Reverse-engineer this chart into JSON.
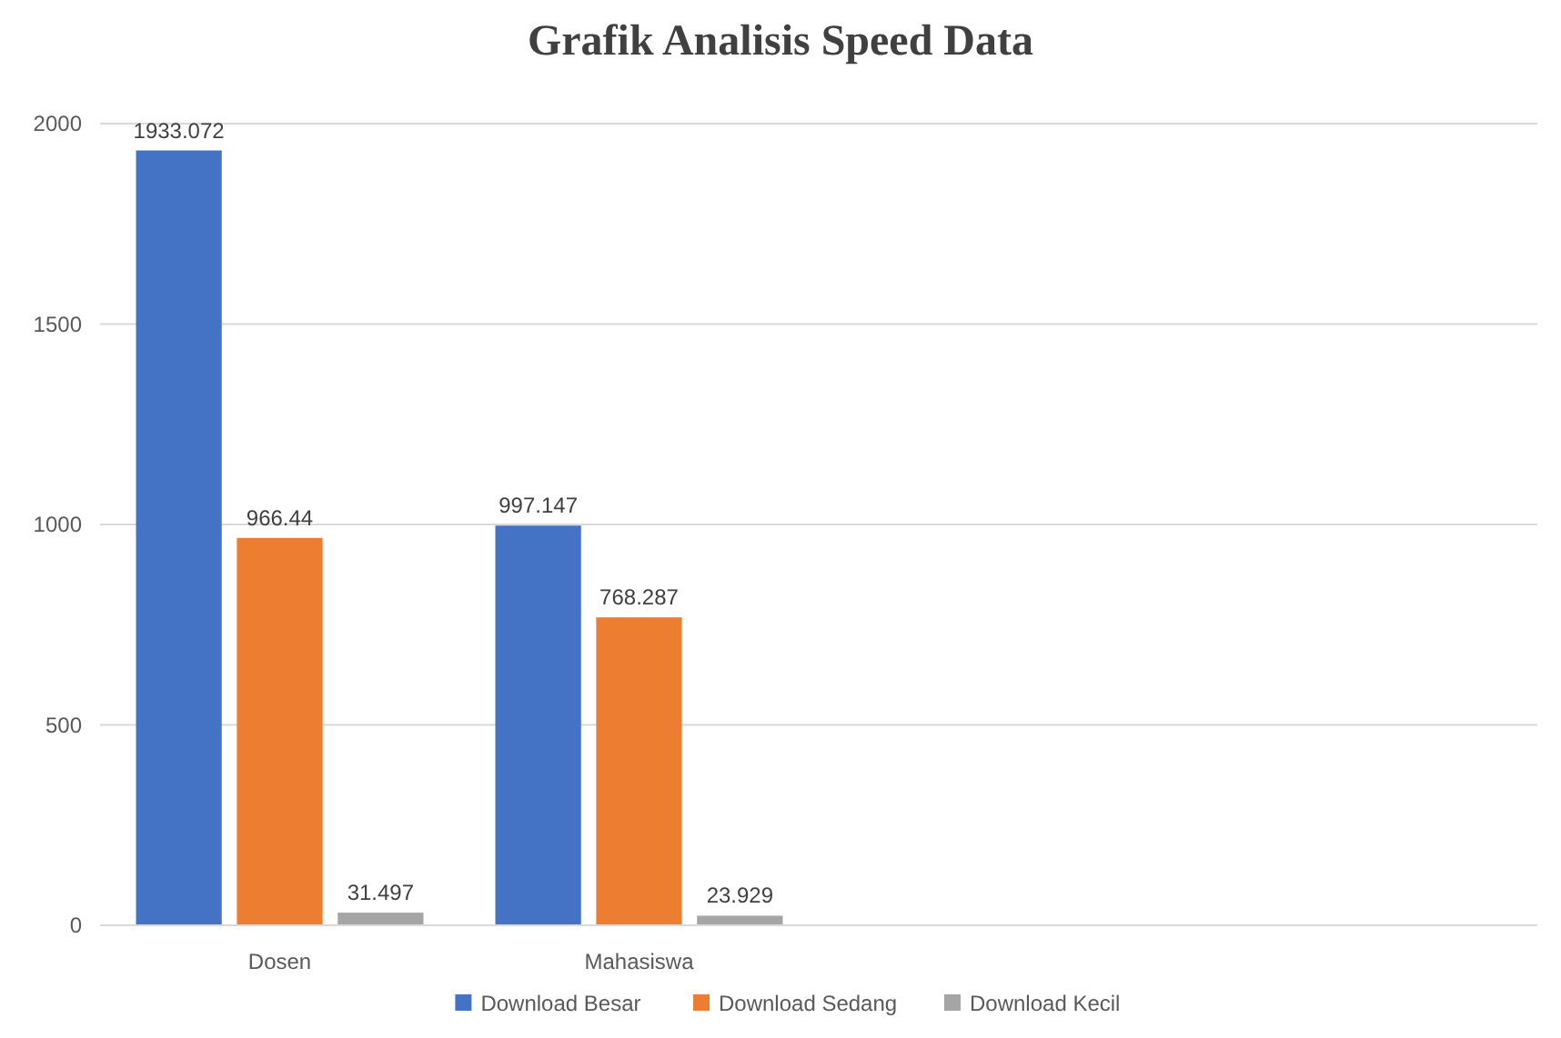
{
  "chart_data": {
    "type": "bar",
    "title": "Grafik Analisis Speed Data",
    "categories": [
      "Dosen",
      "Mahasiswa",
      null,
      null
    ],
    "series": [
      {
        "name": "Download Besar",
        "color": "#4472c4",
        "values": [
          1933.072,
          997.147,
          null,
          null
        ]
      },
      {
        "name": "Download Sedang",
        "color": "#ed7d31",
        "values": [
          966.44,
          768.287,
          null,
          null
        ]
      },
      {
        "name": "Download Kecil",
        "color": "#a5a5a5",
        "values": [
          31.497,
          23.929,
          null,
          null
        ]
      }
    ],
    "ylim": [
      0,
      2000
    ],
    "yticks": [
      0,
      500,
      1000,
      1500,
      2000
    ],
    "grid": "y",
    "legend": "bottom",
    "data_labels": true
  }
}
